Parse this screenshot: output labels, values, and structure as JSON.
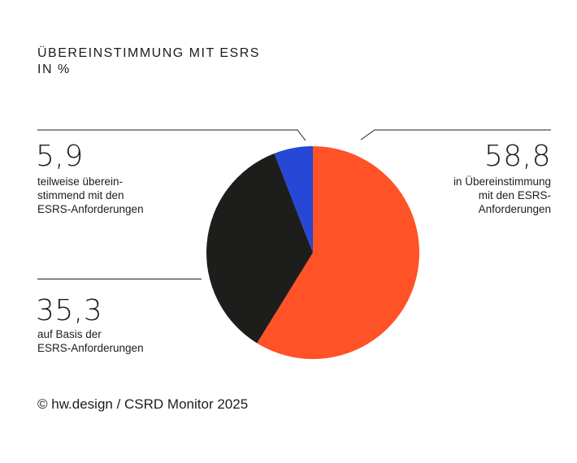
{
  "title": {
    "line1": "ÜBEREINSTIMMUNG MIT ESRS",
    "line2": "IN %"
  },
  "labels": {
    "partial": {
      "value": "5,9",
      "lines": [
        "teilweise überein-",
        "stimmend mit den",
        "ESRS-Anforderungen"
      ]
    },
    "based": {
      "value": "35,3",
      "lines": [
        "auf Basis der",
        "ESRS-Anforderungen"
      ]
    },
    "compliant": {
      "value": "58,8",
      "lines": [
        "in Übereinstimmung",
        "mit den ESRS-",
        "Anforderungen"
      ]
    }
  },
  "footer": "© hw.design / CSRD Monitor 2025",
  "colors": {
    "compliant": "#ff5227",
    "based": "#1d1d1b",
    "partial": "#2747d6"
  },
  "chart_data": {
    "type": "pie",
    "title": "ÜBEREINSTIMMUNG MIT ESRS",
    "subtitle": "IN %",
    "slices": [
      {
        "name": "in Übereinstimmung mit den ESRS-Anforderungen",
        "value": 58.8,
        "color": "#ff5227"
      },
      {
        "name": "auf Basis der ESRS-Anforderungen",
        "value": 35.3,
        "color": "#1d1d1b"
      },
      {
        "name": "teilweise übereinstimmend mit den ESRS-Anforderungen",
        "value": 5.9,
        "color": "#2747d6"
      }
    ]
  }
}
